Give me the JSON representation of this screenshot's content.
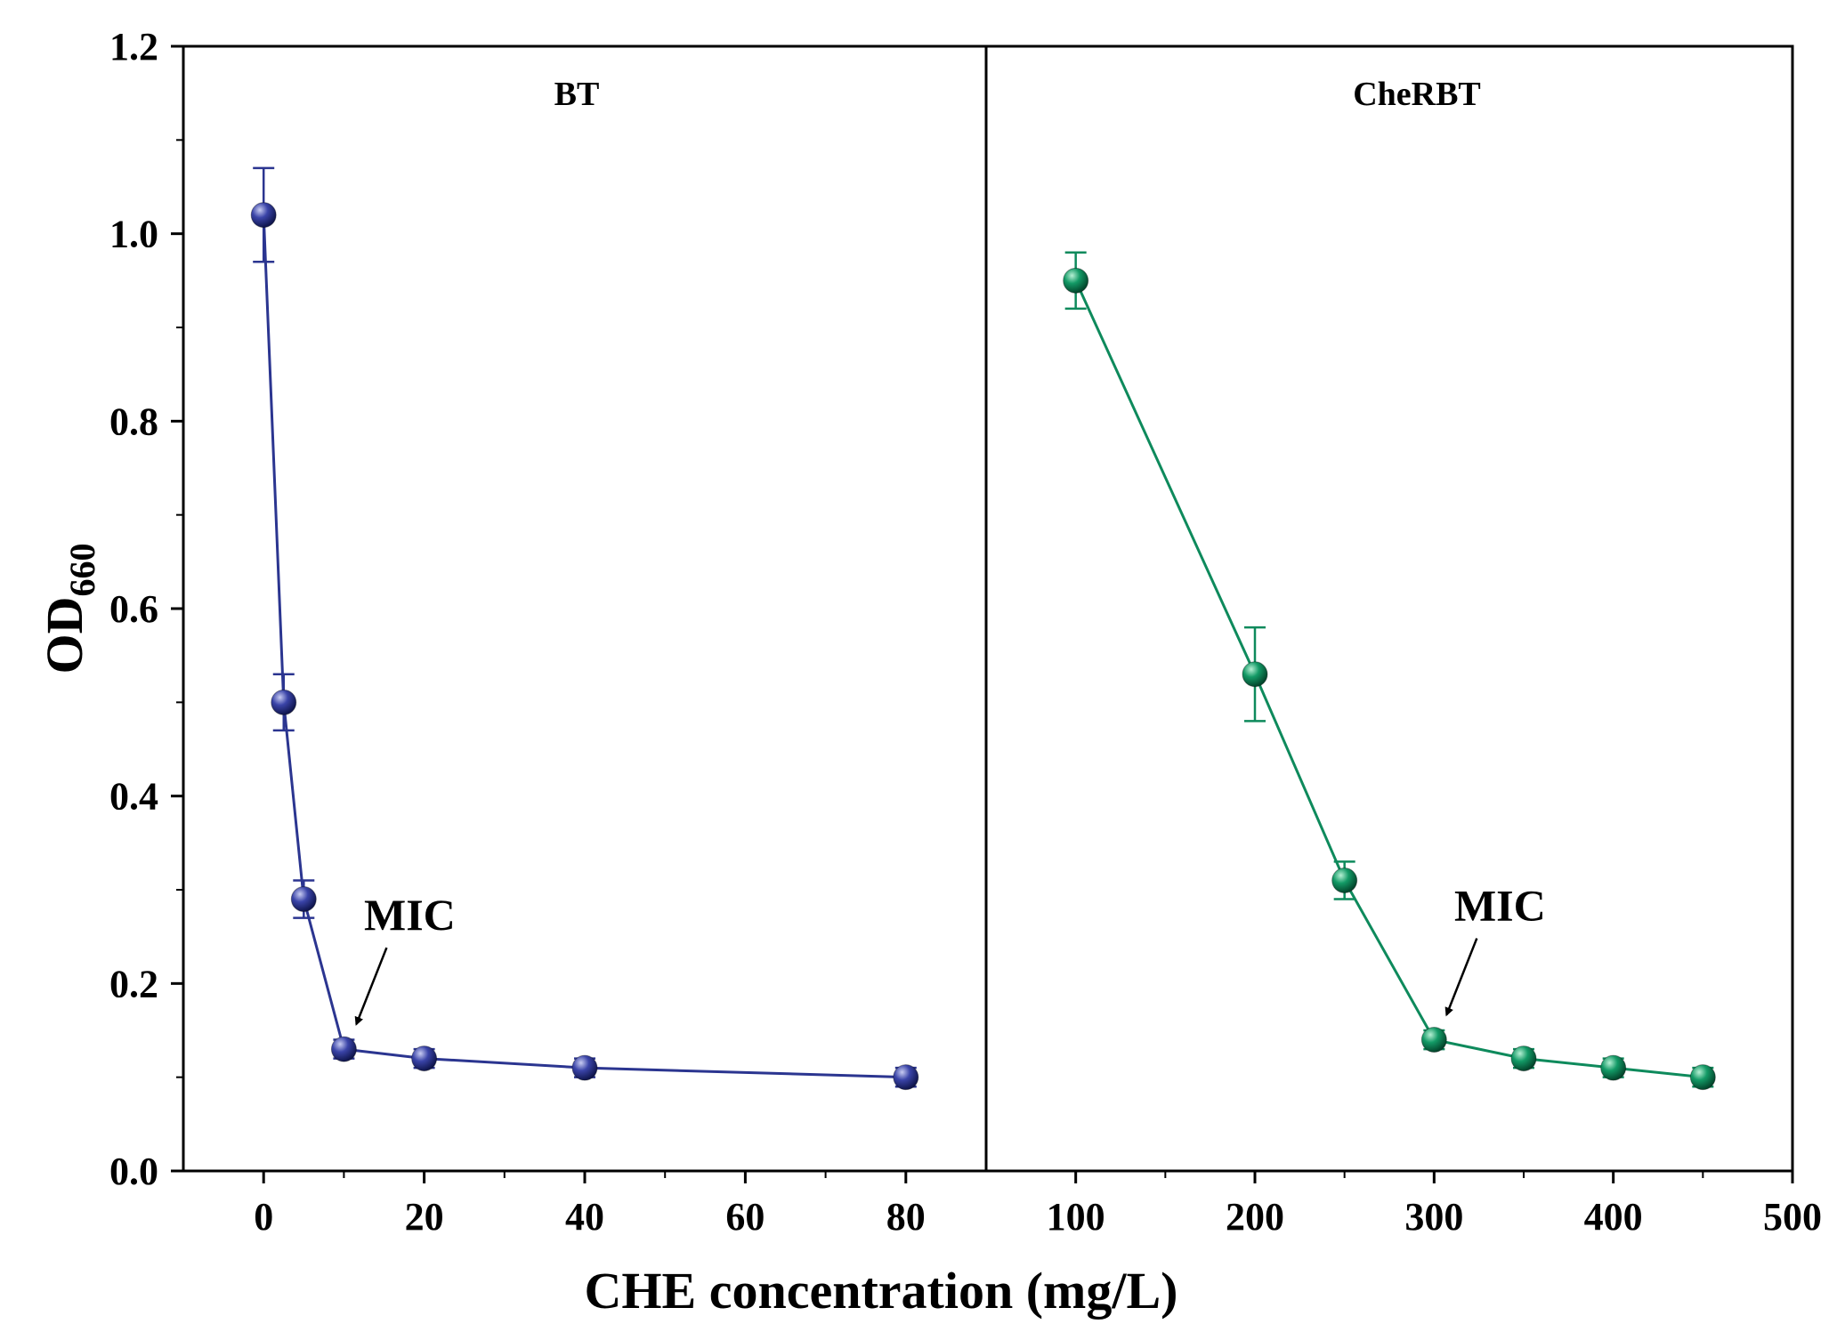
{
  "chart_data": {
    "type": "line",
    "xlabel": "CHE concentration  (mg/L)",
    "ylabel_main": "OD",
    "ylabel_sub": "660",
    "ylim": [
      0,
      1.2
    ],
    "yticks": [
      "0.0",
      "0.2",
      "0.4",
      "0.6",
      "0.8",
      "1.0",
      "1.2"
    ],
    "grid": false,
    "panels": [
      {
        "title": "BT",
        "xlim": [
          -10,
          90
        ],
        "xticks": [
          "0",
          "20",
          "40",
          "60",
          "80"
        ],
        "color": "#2B3590",
        "annotation": "MIC",
        "annotation_point": 3,
        "series": [
          {
            "name": "BT",
            "x": [
              0,
              2.5,
              5,
              10,
              20,
              40,
              80
            ],
            "y": [
              1.02,
              0.5,
              0.29,
              0.13,
              0.12,
              0.11,
              0.1
            ],
            "err": [
              0.05,
              0.03,
              0.02,
              0.01,
              0.01,
              0.01,
              0.01
            ]
          }
        ]
      },
      {
        "title": "CheRBT",
        "xlim": [
          50,
          500
        ],
        "xticks": [
          "100",
          "200",
          "300",
          "400",
          "500"
        ],
        "color": "#0E8A5C",
        "annotation": "MIC",
        "annotation_point": 3,
        "series": [
          {
            "name": "CheRBT",
            "x": [
              100,
              200,
              250,
              300,
              350,
              400,
              450
            ],
            "y": [
              0.95,
              0.53,
              0.31,
              0.14,
              0.12,
              0.11,
              0.1
            ],
            "err": [
              0.03,
              0.05,
              0.02,
              0.01,
              0.01,
              0.01,
              0.01
            ]
          }
        ]
      }
    ]
  }
}
